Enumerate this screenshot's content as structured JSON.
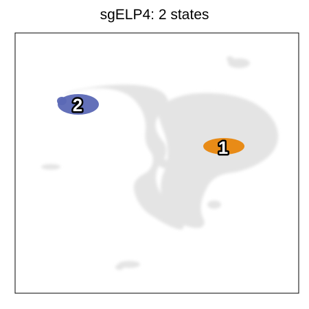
{
  "title": "sgELP4: 2 states",
  "chart_data": {
    "type": "scatter",
    "title": "sgELP4: 2 states",
    "xlabel": "",
    "ylabel": "",
    "grid": false,
    "legend": "none",
    "background_color": "#d9d9d9",
    "series": [
      {
        "label": "1",
        "color": "#e8860c",
        "x": 325,
        "y": 212
      },
      {
        "label": "2",
        "color": "#5b68b5",
        "x": 113,
        "y": 151
      }
    ]
  }
}
